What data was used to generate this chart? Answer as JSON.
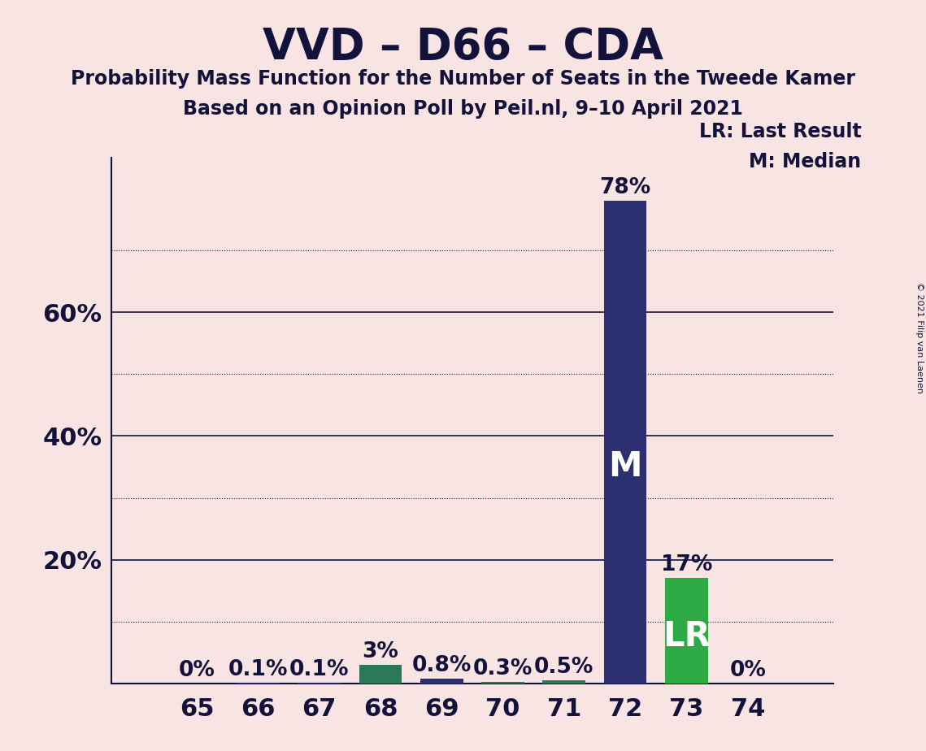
{
  "title": "VVD – D66 – CDA",
  "subtitle1": "Probability Mass Function for the Number of Seats in the Tweede Kamer",
  "subtitle2": "Based on an Opinion Poll by Peil.nl, 9–10 April 2021",
  "copyright": "© 2021 Filip van Laenen",
  "seats": [
    65,
    66,
    67,
    68,
    69,
    70,
    71,
    72,
    73,
    74
  ],
  "values": [
    0.0,
    0.001,
    0.001,
    0.03,
    0.008,
    0.003,
    0.005,
    0.78,
    0.17,
    0.0
  ],
  "labels": [
    "0%",
    "0.1%",
    "0.1%",
    "3%",
    "0.8%",
    "0.3%",
    "0.5%",
    "78%",
    "17%",
    "0%"
  ],
  "bar_colors": [
    "#2d3070",
    "#2d3070",
    "#2d3070",
    "#2a7a5a",
    "#2d3070",
    "#2a7a5a",
    "#2a7a5a",
    "#2d3070",
    "#2eaa44",
    "#2d3070"
  ],
  "median_seat": 72,
  "lr_seat": 73,
  "median_label": "M",
  "lr_label": "LR",
  "legend_lr": "LR: Last Result",
  "legend_m": "M: Median",
  "background_color": "#f9e4e4",
  "text_color": "#12123a",
  "ytick_solid": [
    0.2,
    0.4,
    0.6
  ],
  "ytick_dotted": [
    0.1,
    0.3,
    0.5,
    0.7
  ],
  "ytick_labels_vals": [
    0.2,
    0.4,
    0.6
  ],
  "ytick_labels_text": [
    "20%",
    "40%",
    "60%"
  ],
  "ylim": [
    0,
    0.85
  ],
  "xlim_left": 63.6,
  "xlim_right": 75.4,
  "bar_width": 0.7
}
